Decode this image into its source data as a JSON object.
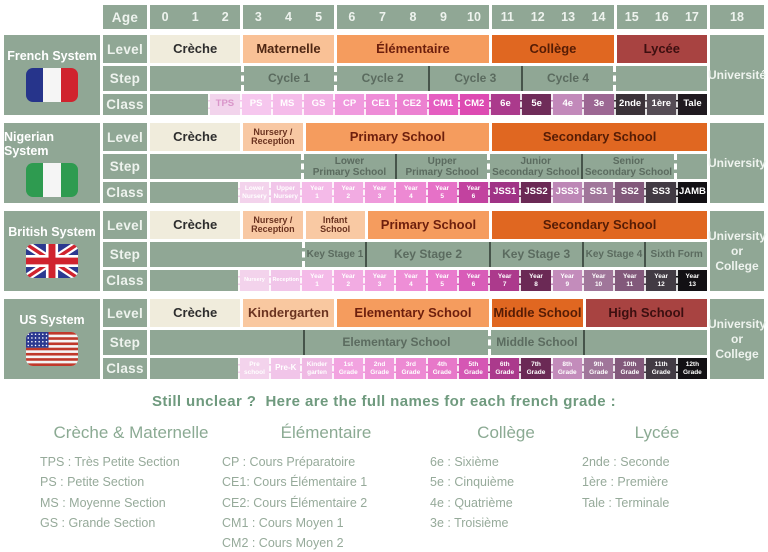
{
  "colors": {
    "table_green": "#90a795",
    "header_text": "#eef3ee",
    "step_text": "#5b6b5f",
    "divider_dark": "#46544a",
    "legend_title": "#6f9a7e",
    "legend_heading": "#8baa93",
    "legend_text": "#96aa9a",
    "cream": "#f0ecdc",
    "peach_light": "#f8c8a3",
    "peach": "#f9c196",
    "orange": "#f59c5e",
    "orange_dark": "#e06721",
    "maroon": "#a84341"
  },
  "age_header": {
    "label": "Age",
    "groups": [
      {
        "span": 3,
        "values": [
          "0",
          "1",
          "2"
        ]
      },
      {
        "span": 3,
        "values": [
          "3",
          "4",
          "5"
        ]
      },
      {
        "span": 5,
        "values": [
          "6",
          "7",
          "8",
          "9",
          "10"
        ]
      },
      {
        "span": 4,
        "values": [
          "11",
          "12",
          "13",
          "14"
        ]
      },
      {
        "span": 3,
        "values": [
          "15",
          "16",
          "17"
        ]
      }
    ],
    "last": "18"
  },
  "row_labels": {
    "level": "Level",
    "step": "Step",
    "class": "Class"
  },
  "systems": [
    {
      "id": "french",
      "name": "French System",
      "flag_icon": "french-flag-icon",
      "university": "Université",
      "levels": [
        {
          "label": "Crèche",
          "span": 3,
          "bg": "#f0ecdc",
          "color": "#2e2e2e"
        },
        {
          "label": "Maternelle",
          "span": 3,
          "bg": "#f9c196",
          "color": "#4f2713"
        },
        {
          "label": "Élémentaire",
          "span": 5,
          "bg": "#f59c5e",
          "color": "#6d1f0d"
        },
        {
          "label": "Collège",
          "span": 4,
          "bg": "#e06721",
          "color": "#551c05"
        },
        {
          "label": "Lycée",
          "span": 3,
          "bg": "#a84341",
          "color": "#3c0f10"
        }
      ],
      "steps": [
        {
          "label": "",
          "span": 3,
          "div": "none"
        },
        {
          "label": "Cycle 1",
          "span": 3,
          "div": "dashed"
        },
        {
          "label": "Cycle 2",
          "span": 3,
          "div": "dashed"
        },
        {
          "label": "Cycle 3",
          "span": 3,
          "div": "solid"
        },
        {
          "label": "Cycle 4",
          "span": 3,
          "div": "solid"
        },
        {
          "label": "",
          "span": 3,
          "div": "dashed"
        }
      ],
      "classes": [
        {
          "label": "",
          "span": 2,
          "bg": ""
        },
        {
          "label": "TPS",
          "span": 1,
          "bg": "#f2d4ec",
          "tc": "#d995c9"
        },
        {
          "label": "PS",
          "span": 1,
          "bg": "#f6c7ee"
        },
        {
          "label": "MS",
          "span": 1,
          "bg": "#f5bcea"
        },
        {
          "label": "GS",
          "span": 1,
          "bg": "#f3b0e5"
        },
        {
          "label": "CP",
          "span": 1,
          "bg": "#f09ade"
        },
        {
          "label": "CE1",
          "span": 1,
          "bg": "#ee8cd7"
        },
        {
          "label": "CE2",
          "span": 1,
          "bg": "#ec81d1"
        },
        {
          "label": "CM1",
          "span": 1,
          "bg": "#e55ec1"
        },
        {
          "label": "CM2",
          "span": 1,
          "bg": "#dd4ab2"
        },
        {
          "label": "6e",
          "span": 1,
          "bg": "#ab3a8c"
        },
        {
          "label": "5e",
          "span": 1,
          "bg": "#6f2c59"
        },
        {
          "label": "4e",
          "span": 1,
          "bg": "#c289ba"
        },
        {
          "label": "3e",
          "span": 1,
          "bg": "#9c6793"
        },
        {
          "label": "2nde",
          "span": 1,
          "bg": "#3b3239"
        },
        {
          "label": "1ère",
          "span": 1,
          "bg": "#554c55"
        },
        {
          "label": "Tale",
          "span": 1,
          "bg": "#201a20"
        }
      ]
    },
    {
      "id": "nigerian",
      "name": "Nigerian System",
      "flag_icon": "nigerian-flag-icon",
      "university": "University",
      "levels": [
        {
          "label": "Crèche",
          "span": 3,
          "bg": "#f0ecdc",
          "color": "#2e2e2e"
        },
        {
          "label": "Nursery /\nReception",
          "span": 2,
          "bg": "#f8c8a3",
          "color": "#6b3320"
        },
        {
          "label": "Primary School",
          "span": 6,
          "bg": "#f59c5e",
          "color": "#6d1f0d"
        },
        {
          "label": "Secondary School",
          "span": 7,
          "bg": "#e06721",
          "color": "#551c05"
        }
      ],
      "steps": [
        {
          "label": "",
          "span": 5,
          "div": "none"
        },
        {
          "label": "Lower\nPrimary School",
          "span": 3,
          "div": "dashed"
        },
        {
          "label": "Upper\nPrimary School",
          "span": 3,
          "div": "solid"
        },
        {
          "label": "Junior\nSecondary School",
          "span": 3,
          "div": "dashed"
        },
        {
          "label": "Senior\nSecondary School",
          "span": 3,
          "div": "solid"
        },
        {
          "label": "",
          "span": 1,
          "div": "dashed"
        }
      ],
      "classes": [
        {
          "label": "",
          "span": 3,
          "bg": ""
        },
        {
          "label": "Lower\nNursery",
          "span": 1,
          "bg": "#f3d3ec"
        },
        {
          "label": "Upper\nNursery",
          "span": 1,
          "bg": "#f1c5e9"
        },
        {
          "label": "Year\n1",
          "span": 1,
          "bg": "#f4bae8"
        },
        {
          "label": "Year\n2",
          "span": 1,
          "bg": "#f2abe2"
        },
        {
          "label": "Year\n3",
          "span": 1,
          "bg": "#ef9adb"
        },
        {
          "label": "Year\n4",
          "span": 1,
          "bg": "#ed89d3"
        },
        {
          "label": "Year\n5",
          "span": 1,
          "bg": "#e671c7"
        },
        {
          "label": "Year\n6",
          "span": 1,
          "bg": "#c2429f"
        },
        {
          "label": "JSS1",
          "span": 1,
          "bg": "#a03386"
        },
        {
          "label": "JSS2",
          "span": 1,
          "bg": "#6b2955"
        },
        {
          "label": "JSS3",
          "span": 1,
          "bg": "#bd87b6"
        },
        {
          "label": "SS1",
          "span": 1,
          "bg": "#a0769a"
        },
        {
          "label": "SS2",
          "span": 1,
          "bg": "#82597b"
        },
        {
          "label": "SS3",
          "span": 1,
          "bg": "#423b44"
        },
        {
          "label": "JAMB",
          "span": 1,
          "bg": "#121014"
        }
      ]
    },
    {
      "id": "british",
      "name": "British System",
      "flag_icon": "british-flag-icon",
      "university": "University\nor College",
      "levels": [
        {
          "label": "Crèche",
          "span": 3,
          "bg": "#f0ecdc",
          "color": "#2e2e2e"
        },
        {
          "label": "Nursery /\nReception",
          "span": 2,
          "bg": "#f8c8a3",
          "color": "#6b3320"
        },
        {
          "label": "Infant\nSchool",
          "span": 2,
          "bg": "#f9c9a3",
          "color": "#6b3320"
        },
        {
          "label": "Primary School",
          "span": 4,
          "bg": "#f59c5e",
          "color": "#6d1f0d"
        },
        {
          "label": "Secondary School",
          "span": 7,
          "bg": "#e06721",
          "color": "#551c05"
        }
      ],
      "steps": [
        {
          "label": "",
          "span": 5,
          "div": "none"
        },
        {
          "label": "Key Stage 1",
          "span": 2,
          "div": "dashed"
        },
        {
          "label": "Key Stage 2",
          "span": 4,
          "div": "solid"
        },
        {
          "label": "Key Stage 3",
          "span": 3,
          "div": "solid"
        },
        {
          "label": "Key Stage 4",
          "span": 2,
          "div": "solid"
        },
        {
          "label": "Sixth Form",
          "span": 2,
          "div": "solid"
        }
      ],
      "classes": [
        {
          "label": "",
          "span": 3,
          "bg": ""
        },
        {
          "label": "Nursery",
          "span": 1,
          "bg": "#f3d3ec"
        },
        {
          "label": "Reception",
          "span": 1,
          "bg": "#f1c5e9"
        },
        {
          "label": "Year\n1",
          "span": 1,
          "bg": "#f4bae8"
        },
        {
          "label": "Year\n2",
          "span": 1,
          "bg": "#f2abe2"
        },
        {
          "label": "Year\n3",
          "span": 1,
          "bg": "#f0a0de"
        },
        {
          "label": "Year\n4",
          "span": 1,
          "bg": "#ee8ed6"
        },
        {
          "label": "Year\n5",
          "span": 1,
          "bg": "#e97bcd"
        },
        {
          "label": "Year\n6",
          "span": 1,
          "bg": "#d85cb8"
        },
        {
          "label": "Year\n7",
          "span": 1,
          "bg": "#ac3a8c"
        },
        {
          "label": "Year\n8",
          "span": 1,
          "bg": "#6b2955"
        },
        {
          "label": "Year\n9",
          "span": 1,
          "bg": "#c38cbb"
        },
        {
          "label": "Year\n10",
          "span": 1,
          "bg": "#a0769a"
        },
        {
          "label": "Year\n11",
          "span": 1,
          "bg": "#82597b"
        },
        {
          "label": "Year\n12",
          "span": 1,
          "bg": "#423b44"
        },
        {
          "label": "Year\n13",
          "span": 1,
          "bg": "#121014"
        }
      ]
    },
    {
      "id": "us",
      "name": "US System",
      "flag_icon": "us-flag-icon",
      "university": "University\nor College",
      "levels": [
        {
          "label": "Crèche",
          "span": 3,
          "bg": "#f0ecdc",
          "color": "#2e2e2e"
        },
        {
          "label": "Kindergarten",
          "span": 3,
          "bg": "#f9c8a0",
          "color": "#6b3320"
        },
        {
          "label": "Elementary School",
          "span": 5,
          "bg": "#f59c5e",
          "color": "#6d1f0d"
        },
        {
          "label": "Middle School",
          "span": 3,
          "bg": "#e06721",
          "color": "#551c05"
        },
        {
          "label": "High School",
          "span": 4,
          "bg": "#a84341",
          "color": "#3c0f10"
        }
      ],
      "steps": [
        {
          "label": "",
          "span": 5,
          "div": "none"
        },
        {
          "label": "Elementary School",
          "span": 6,
          "div": "solid"
        },
        {
          "label": "Middle School",
          "span": 3,
          "div": "dashed"
        },
        {
          "label": "",
          "span": 4,
          "div": "solid"
        }
      ],
      "classes": [
        {
          "label": "",
          "span": 3,
          "bg": ""
        },
        {
          "label": "Pre\nschool",
          "span": 1,
          "bg": "#f3d3ec"
        },
        {
          "label": "Pre-K",
          "span": 1,
          "bg": "#f1c5e9"
        },
        {
          "label": "Kinder\ngarten",
          "span": 1,
          "bg": "#efb9e4"
        },
        {
          "label": "1st\nGrade",
          "span": 1,
          "bg": "#f2a3e0"
        },
        {
          "label": "2nd\nGrade",
          "span": 1,
          "bg": "#ef97da"
        },
        {
          "label": "3rd\nGrade",
          "span": 1,
          "bg": "#ed8ad3"
        },
        {
          "label": "4th\nGrade",
          "span": 1,
          "bg": "#e778c9"
        },
        {
          "label": "5th\nGrade",
          "span": 1,
          "bg": "#d557b4"
        },
        {
          "label": "6th\nGrade",
          "span": 1,
          "bg": "#ab3a8c"
        },
        {
          "label": "7th\nGrade",
          "span": 1,
          "bg": "#6b2955"
        },
        {
          "label": "8th\nGrade",
          "span": 1,
          "bg": "#c38cbb"
        },
        {
          "label": "9th\nGrade",
          "span": 1,
          "bg": "#a0769a"
        },
        {
          "label": "10th\nGrade",
          "span": 1,
          "bg": "#82597b"
        },
        {
          "label": "11th\nGrade",
          "span": 1,
          "bg": "#423b44"
        },
        {
          "label": "12th\nGrade",
          "span": 1,
          "bg": "#121014"
        }
      ]
    }
  ],
  "legend": {
    "title": "Still unclear ?  Here are the full names for each french grade :",
    "columns": [
      {
        "heading": "Crèche & Maternelle",
        "items": [
          "TPS : Très Petite Section",
          "PS : Petite Section",
          "MS : Moyenne Section",
          "GS : Grande Section"
        ]
      },
      {
        "heading": "Élémentaire",
        "items": [
          "CP : Cours Préparatoire",
          "CE1: Cours Élémentaire 1",
          "CE2: Cours Élémentaire 2",
          "CM1 : Cours Moyen 1",
          "CM2 : Cours Moyen 2"
        ]
      },
      {
        "heading": "Collège",
        "items": [
          "6e : Sixième",
          "5e : Cinquième",
          "4e : Quatrième",
          "3e : Troisième"
        ]
      },
      {
        "heading": "Lycée",
        "items": [
          "2nde : Seconde",
          "1ère : Première",
          "Tale : Terminale"
        ]
      }
    ]
  }
}
